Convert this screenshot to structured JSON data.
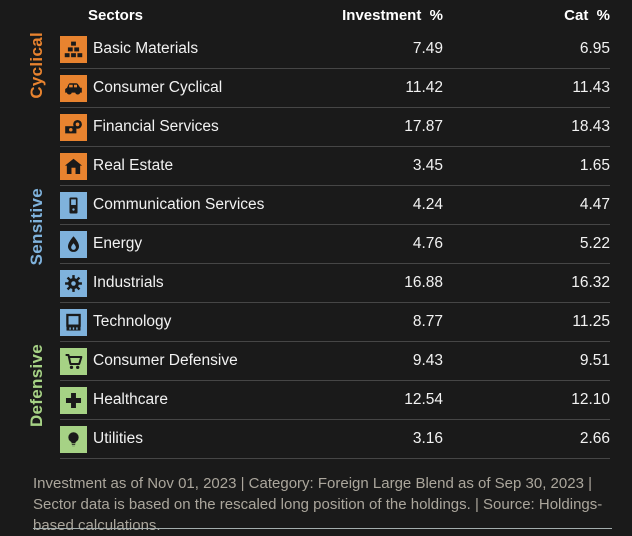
{
  "colors": {
    "background": "#1A1A1A",
    "row_divider": "#464646",
    "ink": "#1A1A1A",
    "cyclical": "#E8832F",
    "sensitive": "#7FB2DC",
    "defensive": "#A6D285",
    "footer_text": "#ABA69C",
    "footer_divider": "#A3ADAD"
  },
  "table": {
    "headers": {
      "sector": "Sectors",
      "investment": "Investment  %",
      "category": "Cat  %"
    },
    "groups": [
      {
        "name": "Cyclical",
        "color_key": "cyclical",
        "rows": [
          {
            "sector": "Basic Materials",
            "icon": "basic-materials-icon",
            "investment": "7.49",
            "category": "6.95"
          },
          {
            "sector": "Consumer Cyclical",
            "icon": "consumer-cyclical-icon",
            "investment": "11.42",
            "category": "11.43"
          },
          {
            "sector": "Financial Services",
            "icon": "financial-services-icon",
            "investment": "17.87",
            "category": "18.43"
          },
          {
            "sector": "Real Estate",
            "icon": "real-estate-icon",
            "investment": "3.45",
            "category": "1.65"
          }
        ]
      },
      {
        "name": "Sensitive",
        "color_key": "sensitive",
        "rows": [
          {
            "sector": "Communication Services",
            "icon": "communication-services-icon",
            "investment": "4.24",
            "category": "4.47"
          },
          {
            "sector": "Energy",
            "icon": "energy-icon",
            "investment": "4.76",
            "category": "5.22"
          },
          {
            "sector": "Industrials",
            "icon": "industrials-icon",
            "investment": "16.88",
            "category": "16.32"
          },
          {
            "sector": "Technology",
            "icon": "technology-icon",
            "investment": "8.77",
            "category": "11.25"
          }
        ]
      },
      {
        "name": "Defensive",
        "color_key": "defensive",
        "rows": [
          {
            "sector": "Consumer Defensive",
            "icon": "consumer-defensive-icon",
            "investment": "9.43",
            "category": "9.51"
          },
          {
            "sector": "Healthcare",
            "icon": "healthcare-icon",
            "investment": "12.54",
            "category": "12.10"
          },
          {
            "sector": "Utilities",
            "icon": "utilities-icon",
            "investment": "3.16",
            "category": "2.66"
          }
        ]
      }
    ]
  },
  "footer": {
    "text": "Investment as of Nov 01, 2023 | Category: Foreign Large Blend as of Sep 30, 2023 | Sector data is based on the rescaled long position of the holdings. | Source: Holdings-based calculations."
  },
  "chart_data": {
    "type": "table",
    "title": "Sector weightings: Investment vs Category",
    "columns": [
      "Sectors",
      "Investment %",
      "Cat %"
    ],
    "row_groups": [
      {
        "group": "Cyclical",
        "rows": [
          [
            "Basic Materials",
            7.49,
            6.95
          ],
          [
            "Consumer Cyclical",
            11.42,
            11.43
          ],
          [
            "Financial Services",
            17.87,
            18.43
          ],
          [
            "Real Estate",
            3.45,
            1.65
          ]
        ]
      },
      {
        "group": "Sensitive",
        "rows": [
          [
            "Communication Services",
            4.24,
            4.47
          ],
          [
            "Energy",
            4.76,
            5.22
          ],
          [
            "Industrials",
            16.88,
            16.32
          ],
          [
            "Technology",
            8.77,
            11.25
          ]
        ]
      },
      {
        "group": "Defensive",
        "rows": [
          [
            "Consumer Defensive",
            9.43,
            9.51
          ],
          [
            "Healthcare",
            12.54,
            12.1
          ],
          [
            "Utilities",
            3.16,
            2.66
          ]
        ]
      }
    ],
    "footnote": "Investment as of Nov 01, 2023 | Category: Foreign Large Blend as of Sep 30, 2023 | Sector data is based on the rescaled long position of the holdings. | Source: Holdings-based calculations."
  }
}
